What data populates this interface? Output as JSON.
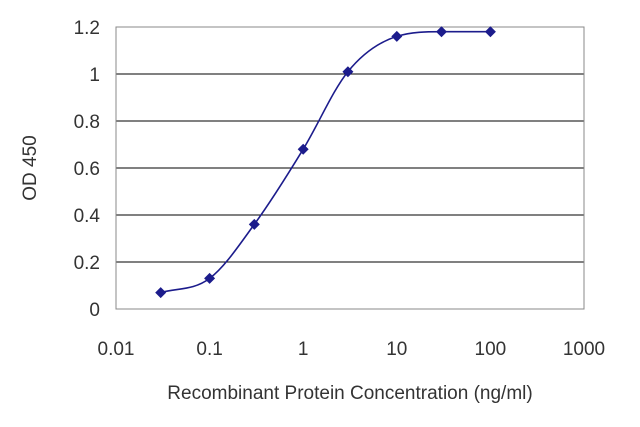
{
  "chart_data": {
    "type": "scatter",
    "title": "",
    "xlabel": "Recombinant Protein Concentration (ng/ml)",
    "ylabel": "OD 450",
    "x_scale": "log",
    "xlim": [
      0.01,
      1000
    ],
    "ylim": [
      0,
      1.2
    ],
    "x_ticks": [
      "0.01",
      "0.1",
      "1",
      "10",
      "100",
      "1000"
    ],
    "y_ticks": [
      "0",
      "0.2",
      "0.4",
      "0.6",
      "0.8",
      "1",
      "1.2"
    ],
    "grid": "horizontal",
    "legend": "none",
    "series": [
      {
        "x": [
          0.03,
          0.1,
          0.3,
          1,
          3,
          10,
          30,
          100
        ],
        "y": [
          0.07,
          0.13,
          0.36,
          0.68,
          1.01,
          1.16,
          1.18,
          1.18
        ]
      }
    ],
    "colors": {
      "series": "#1c1c8c",
      "grid": "#000000",
      "frame": "#888888"
    }
  }
}
